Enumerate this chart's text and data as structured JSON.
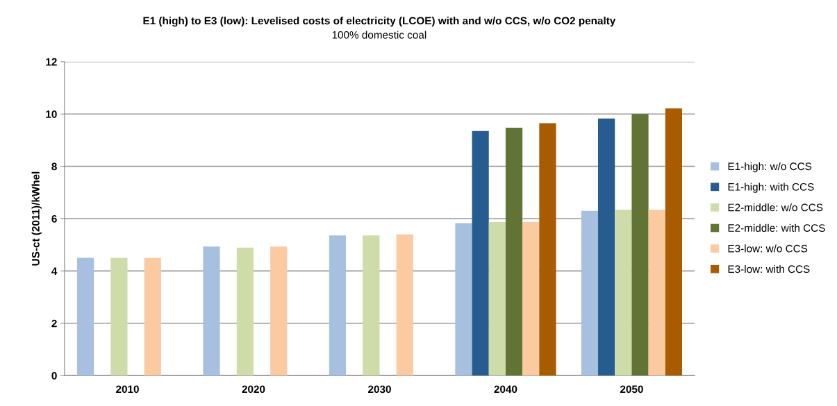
{
  "chart_data": {
    "type": "bar",
    "title": "E1 (high) to E3 (low): Levelised costs of electricity (LCOE) with and w/o CCS, w/o CO2 penalty",
    "subtitle": "100% domestic coal",
    "ylabel": "US-ct (2011)/kWhel",
    "categories": [
      "2010",
      "2020",
      "2030",
      "2040",
      "2050"
    ],
    "series": [
      {
        "name": "E1-high: w/o CCS",
        "color": "#a7c0df",
        "values": [
          4.5,
          4.93,
          5.36,
          5.83,
          6.3
        ]
      },
      {
        "name": "E1-high: with CCS",
        "color": "#265c8f",
        "values": [
          null,
          null,
          null,
          9.35,
          9.83
        ]
      },
      {
        "name": "E2-middle: w/o CCS",
        "color": "#cedcaa",
        "values": [
          4.5,
          4.89,
          5.36,
          5.87,
          6.34
        ]
      },
      {
        "name": "E2-middle: with CCS",
        "color": "#627336",
        "values": [
          null,
          null,
          null,
          9.48,
          10.0
        ]
      },
      {
        "name": "E3-low: w/o CCS",
        "color": "#fbcaa0",
        "values": [
          4.5,
          4.93,
          5.4,
          5.87,
          6.34
        ]
      },
      {
        "name": "E3-low: with CCS",
        "color": "#a95b00",
        "values": [
          null,
          null,
          null,
          9.65,
          10.21
        ]
      }
    ],
    "ylim": [
      0,
      12
    ],
    "yticks": [
      0,
      2,
      4,
      6,
      8,
      10,
      12
    ],
    "grid": "y",
    "legend": "right"
  }
}
